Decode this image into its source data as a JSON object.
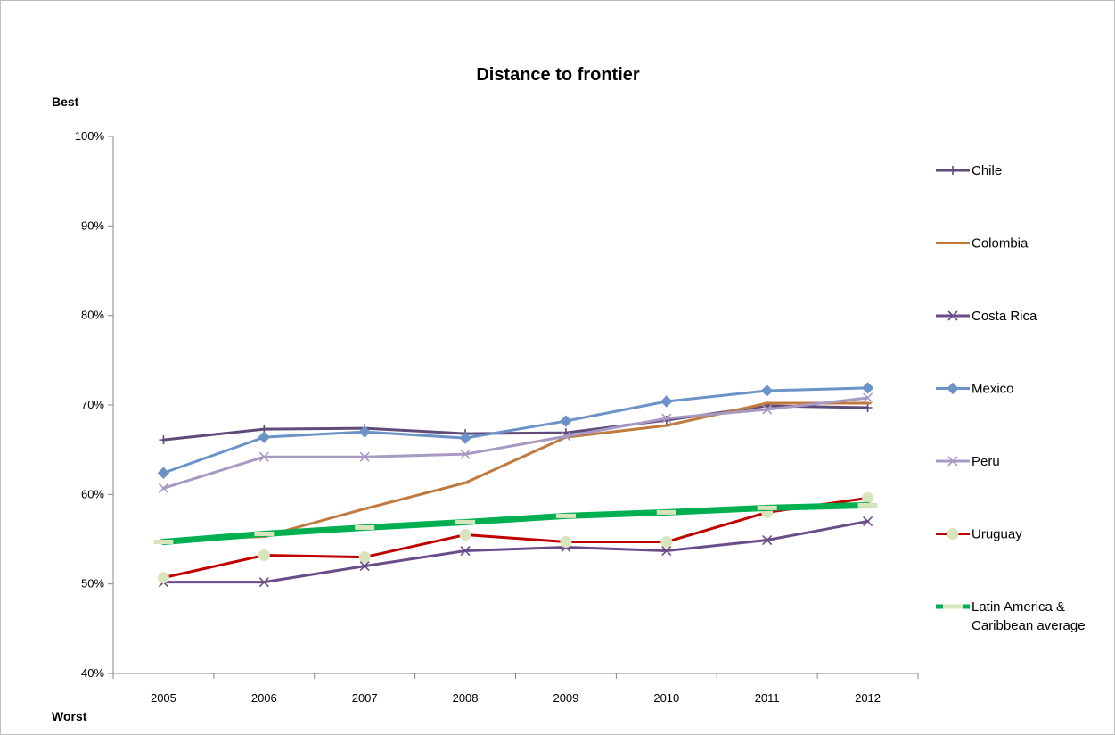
{
  "chart_data": {
    "type": "line",
    "title": "Distance to frontier",
    "top_label": "Best",
    "bottom_label": "Worst",
    "xlabel": "",
    "ylabel": "",
    "categories": [
      "2005",
      "2006",
      "2007",
      "2008",
      "2009",
      "2010",
      "2011",
      "2012"
    ],
    "ylim": [
      40,
      100
    ],
    "yticks": [
      40,
      50,
      60,
      70,
      80,
      90,
      100
    ],
    "ytick_labels": [
      "40%",
      "50%",
      "60%",
      "70%",
      "80%",
      "90%",
      "100%"
    ],
    "grid": false,
    "legend_position": "right",
    "series": [
      {
        "name": "Chile",
        "color": "#5f4a7a",
        "marker": "plus",
        "values": [
          66.1,
          67.3,
          67.4,
          66.8,
          66.9,
          68.3,
          69.9,
          69.7
        ]
      },
      {
        "name": "Colombia",
        "color": "#c07a3e",
        "marker": "dash",
        "values": [
          54.9,
          55.3,
          58.4,
          61.3,
          66.4,
          67.7,
          70.2,
          70.2
        ]
      },
      {
        "name": "Costa Rica",
        "color": "#6a4c8a",
        "marker": "x",
        "values": [
          50.2,
          50.2,
          52.0,
          53.7,
          54.1,
          53.7,
          54.9,
          57.0
        ]
      },
      {
        "name": "Mexico",
        "color": "#6b93c8",
        "marker": "diamond",
        "values": [
          62.4,
          66.4,
          67.0,
          66.3,
          68.2,
          70.4,
          71.6,
          71.9
        ]
      },
      {
        "name": "Peru",
        "color": "#a799c4",
        "marker": "x",
        "values": [
          60.7,
          64.2,
          64.2,
          64.5,
          66.5,
          68.5,
          69.5,
          70.8
        ]
      },
      {
        "name": "Uruguay",
        "color": "#c00000",
        "marker": "circle",
        "values": [
          50.7,
          53.2,
          53.0,
          55.5,
          54.7,
          54.7,
          58.0,
          59.6
        ]
      },
      {
        "name": "Latin America & Caribbean average",
        "legend_lines": [
          "Latin America &",
          "Caribbean average"
        ],
        "color": "#00b050",
        "marker": "dash-light",
        "values": [
          54.7,
          55.6,
          56.3,
          56.9,
          57.6,
          58.0,
          58.5,
          58.8
        ]
      }
    ]
  }
}
